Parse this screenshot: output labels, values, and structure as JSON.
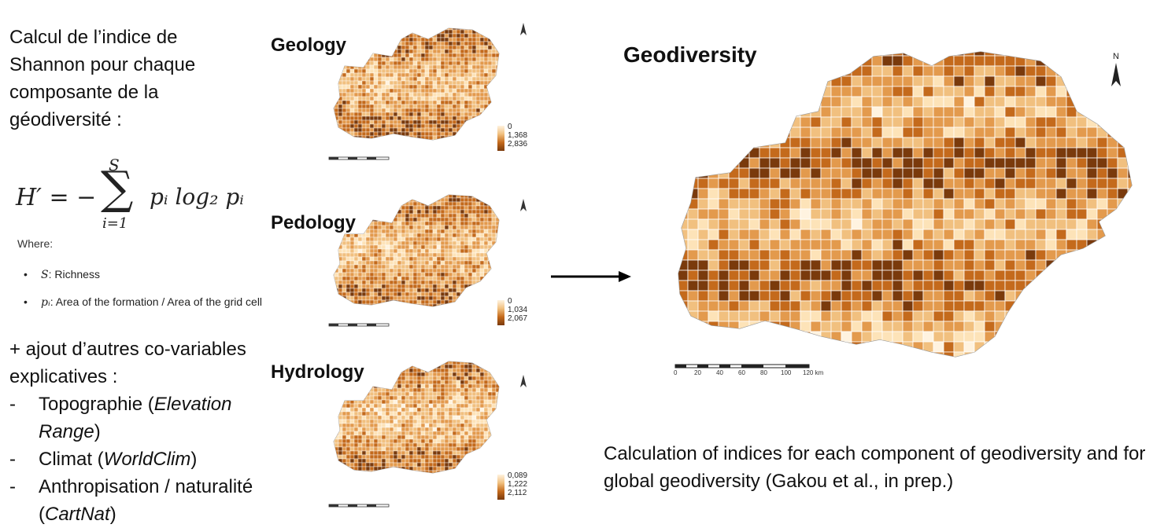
{
  "intro_text": "Calcul de l’indice de Shannon pour chaque composante de la géodiversité :",
  "formula": {
    "lhs": "H′ = −",
    "sum_upper": "S",
    "sum_lower": "i=1",
    "rhs": "pᵢ log₂ pᵢ"
  },
  "where_label": "Where:",
  "definitions": [
    {
      "symbol": "S",
      "text": ": Richness"
    },
    {
      "symbol": "pᵢ",
      "text": ": Area of the formation / Area of the grid cell"
    }
  ],
  "covariates": {
    "intro": "+ ajout d’autres co-variables explicatives :",
    "items": [
      {
        "main": "Topographie (",
        "italic": "Elevation Range",
        "end": ")"
      },
      {
        "main": "Climat (",
        "italic": "WorldClim",
        "end": ")"
      },
      {
        "main": "Anthropisation / naturalité (",
        "italic": "CartNat",
        "end": ")"
      }
    ]
  },
  "maps": [
    {
      "title": "Geology",
      "legend": [
        "0",
        "1,368",
        "2,836"
      ]
    },
    {
      "title": "Pedology",
      "legend": [
        "0",
        "1,034",
        "2,067"
      ]
    },
    {
      "title": "Hydrology",
      "legend": [
        "0,089",
        "1,222",
        "2,112"
      ]
    }
  ],
  "north_label": "N",
  "result": {
    "title": "Geodiversity",
    "scale_labels": [
      "0",
      "20",
      "40",
      "60",
      "80",
      "100",
      "120 km"
    ]
  },
  "caption": "Calculation of indices for each component of geodiversity and for global geodiversity (Gakou et al., in prep.)",
  "colors": {
    "light": "#fff3e0",
    "mid": "#f1c07f",
    "dark": "#c46a1c",
    "darkest": "#7a3a0c",
    "grey_buffer": "#c8c8c8",
    "arrow": "#000000"
  }
}
